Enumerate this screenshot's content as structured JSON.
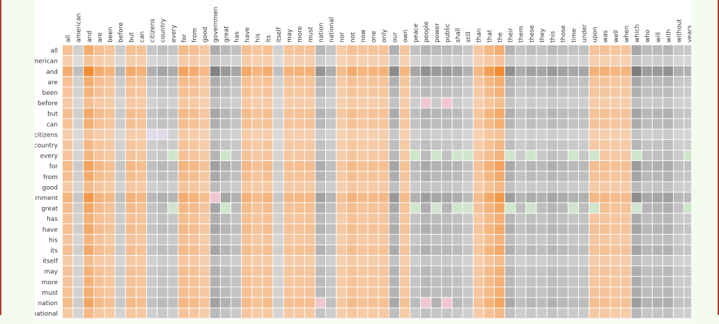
{
  "chart_data": {
    "type": "heatmap",
    "columns": [
      "all",
      "american",
      "and",
      "are",
      "been",
      "before",
      "but",
      "can",
      "citizens",
      "country",
      "every",
      "for",
      "from",
      "good",
      "government",
      "great",
      "has",
      "have",
      "his",
      "its",
      "itself",
      "may",
      "more",
      "must",
      "nation",
      "national",
      "nor",
      "not",
      "now",
      "one",
      "only",
      "our",
      "own",
      "peace",
      "people",
      "power",
      "public",
      "shall",
      "still",
      "than",
      "that",
      "the",
      "their",
      "them",
      "these",
      "they",
      "this",
      "those",
      "time",
      "under",
      "upon",
      "was",
      "well",
      "when",
      "which",
      "who",
      "will",
      "with",
      "without",
      "years"
    ],
    "rows": [
      "all",
      "american",
      "and",
      "are",
      "been",
      "before",
      "but",
      "can",
      "citizens",
      "country",
      "every",
      "for",
      "from",
      "good",
      "government",
      "great",
      "has",
      "have",
      "his",
      "its",
      "itself",
      "may",
      "more",
      "must",
      "nation",
      "national"
    ],
    "row_weights": {
      "all": 0.55,
      "american": 0.28,
      "and": 1.0,
      "are": 0.55,
      "been": 0.48,
      "before": 0.35,
      "but": 0.6,
      "can": 0.52,
      "citizens": 0.3,
      "country": 0.42,
      "every": 0.45,
      "for": 0.68,
      "from": 0.58,
      "good": 0.4,
      "government": 0.82,
      "great": 0.62,
      "has": 0.52,
      "have": 0.6,
      "his": 0.45,
      "its": 0.6,
      "itself": 0.35,
      "may": 0.5,
      "more": 0.5,
      "must": 0.52,
      "nation": 0.65,
      "national": 0.4
    },
    "col_weights": {
      "all": 0.55,
      "american": 0.28,
      "and": 1.0,
      "are": 0.58,
      "been": 0.48,
      "before": 0.35,
      "but": 0.6,
      "can": 0.5,
      "citizens": 0.42,
      "country": 0.52,
      "every": 0.45,
      "for": 0.68,
      "from": 0.58,
      "good": 0.4,
      "government": 0.82,
      "great": 0.62,
      "has": 0.5,
      "have": 0.6,
      "his": 0.45,
      "its": 0.55,
      "itself": 0.28,
      "may": 0.5,
      "more": 0.5,
      "must": 0.52,
      "nation": 0.65,
      "national": 0.45,
      "nor": 0.35,
      "not": 0.58,
      "now": 0.45,
      "one": 0.48,
      "only": 0.48,
      "our": 0.75,
      "own": 0.45,
      "peace": 0.5,
      "people": 0.7,
      "power": 0.6,
      "public": 0.6,
      "shall": 0.55,
      "still": 0.4,
      "than": 0.42,
      "that": 0.75,
      "the": 1.0,
      "their": 0.7,
      "them": 0.45,
      "these": 0.55,
      "they": 0.5,
      "this": 0.62,
      "those": 0.55,
      "time": 0.5,
      "under": 0.5,
      "upon": 0.5,
      "was": 0.52,
      "well": 0.45,
      "when": 0.45,
      "which": 0.88,
      "who": 0.6,
      "will": 0.62,
      "with": 0.68,
      "without": 0.42,
      "years": 0.4
    },
    "neutral_tint_columns": [
      "and",
      "its",
      "have",
      "his",
      "may",
      "more",
      "must",
      "nor",
      "not",
      "now",
      "one",
      "only",
      "own",
      "than",
      "that",
      "the",
      "upon",
      "was",
      "well",
      "when",
      "for",
      "from",
      "good",
      "but",
      "can",
      "all",
      "are",
      "been"
    ],
    "special_cells": [
      {
        "row": "citizens",
        "col": "citizens",
        "tone": "lavender"
      },
      {
        "row": "citizens",
        "col": "country",
        "tone": "lavender"
      },
      {
        "row": "government",
        "col": "government",
        "tone": "pink"
      },
      {
        "row": "before",
        "col": "people",
        "tone": "pink"
      },
      {
        "row": "before",
        "col": "public",
        "tone": "pink"
      },
      {
        "row": "nation",
        "col": "people",
        "tone": "pink"
      },
      {
        "row": "nation",
        "col": "public",
        "tone": "pink"
      },
      {
        "row": "nation",
        "col": "nation",
        "tone": "pink"
      },
      {
        "row": "every",
        "col": "every",
        "tone": "green"
      },
      {
        "row": "every",
        "col": "great",
        "tone": "green"
      },
      {
        "row": "every",
        "col": "peace",
        "tone": "green"
      },
      {
        "row": "every",
        "col": "power",
        "tone": "green"
      },
      {
        "row": "every",
        "col": "shall",
        "tone": "green"
      },
      {
        "row": "every",
        "col": "still",
        "tone": "green"
      },
      {
        "row": "every",
        "col": "their",
        "tone": "green"
      },
      {
        "row": "every",
        "col": "these",
        "tone": "green"
      },
      {
        "row": "every",
        "col": "time",
        "tone": "green"
      },
      {
        "row": "every",
        "col": "upon",
        "tone": "green"
      },
      {
        "row": "every",
        "col": "which",
        "tone": "green"
      },
      {
        "row": "every",
        "col": "years",
        "tone": "green"
      },
      {
        "row": "great",
        "col": "every",
        "tone": "green"
      },
      {
        "row": "great",
        "col": "great",
        "tone": "green"
      },
      {
        "row": "great",
        "col": "peace",
        "tone": "green"
      },
      {
        "row": "great",
        "col": "power",
        "tone": "green"
      },
      {
        "row": "great",
        "col": "shall",
        "tone": "green"
      },
      {
        "row": "great",
        "col": "still",
        "tone": "green"
      },
      {
        "row": "great",
        "col": "their",
        "tone": "green"
      },
      {
        "row": "great",
        "col": "these",
        "tone": "green"
      },
      {
        "row": "great",
        "col": "time",
        "tone": "green"
      },
      {
        "row": "great",
        "col": "upon",
        "tone": "green"
      },
      {
        "row": "great",
        "col": "which",
        "tone": "green"
      },
      {
        "row": "great",
        "col": "years",
        "tone": "green"
      }
    ],
    "colors": {
      "orange_dark": "#f28c33",
      "orange_light": "#f6dcc8",
      "gray_dark": "#6f6f6f",
      "gray_light": "#e6e6e6",
      "lavender": "#e2d9ea",
      "pink": "#efc7cf",
      "green": "#cfe5cc"
    },
    "grid": true,
    "legend": "none"
  }
}
